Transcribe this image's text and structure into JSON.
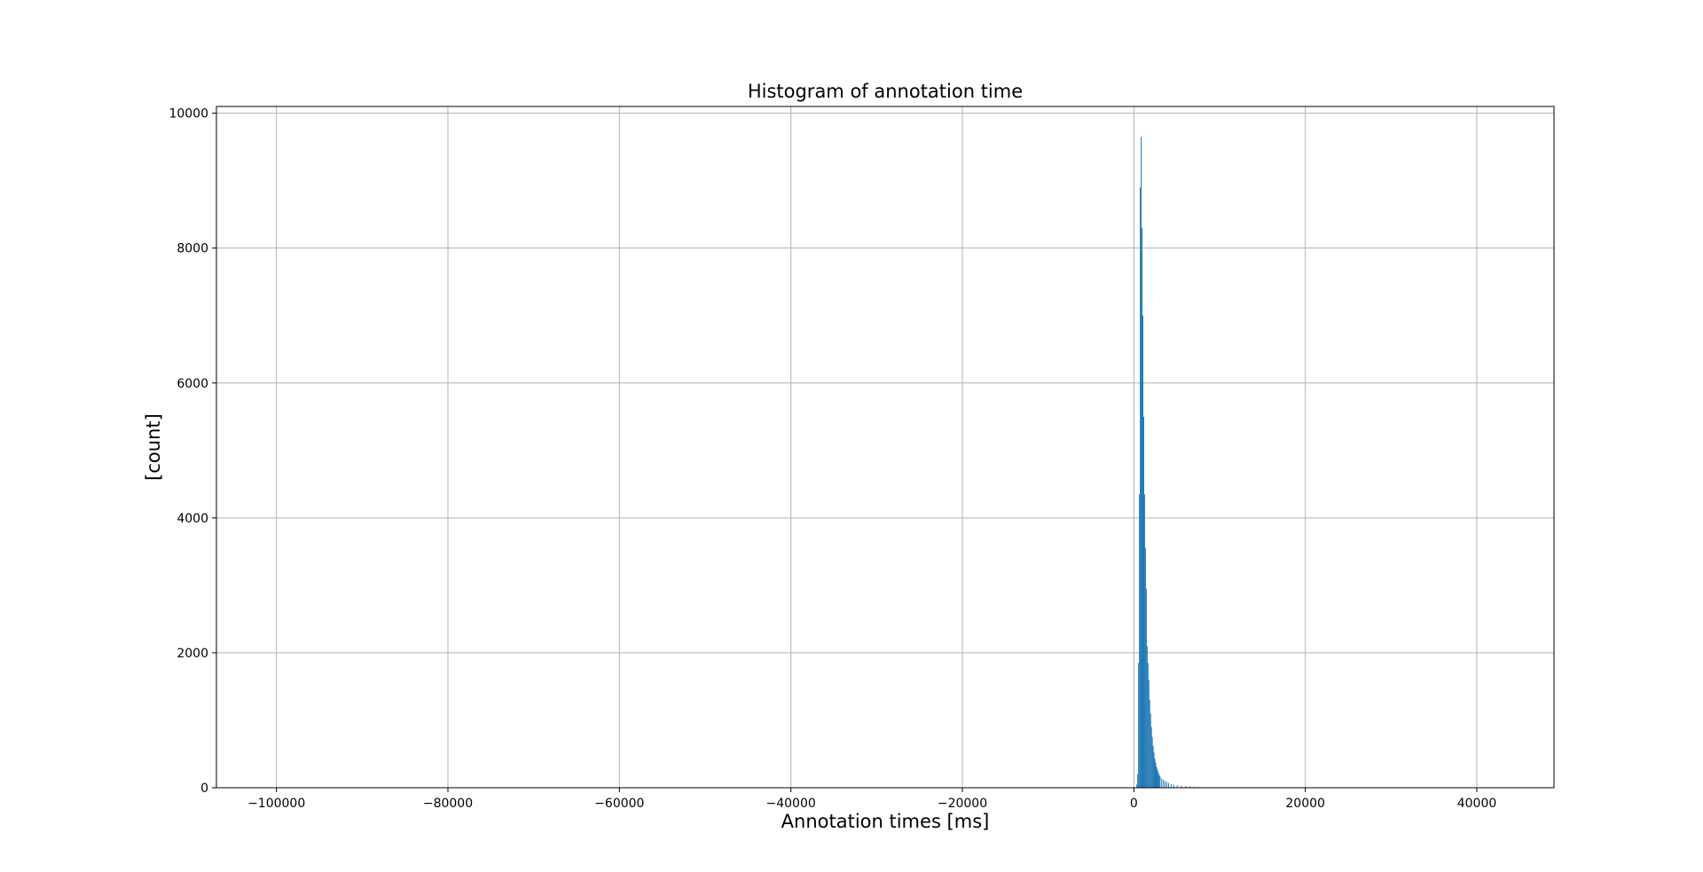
{
  "chart_data": {
    "type": "bar",
    "title": "Histogram of annotation time",
    "xlabel": "Annotation times [ms]",
    "ylabel": "[count]",
    "xlim": [
      -107000,
      49000
    ],
    "ylim": [
      0,
      10100
    ],
    "x_ticks": [
      {
        "value": -100000,
        "label": "−100000"
      },
      {
        "value": -80000,
        "label": "−80000"
      },
      {
        "value": -60000,
        "label": "−60000"
      },
      {
        "value": -40000,
        "label": "−40000"
      },
      {
        "value": -20000,
        "label": "−20000"
      },
      {
        "value": 0,
        "label": "0"
      },
      {
        "value": 20000,
        "label": "20000"
      },
      {
        "value": 40000,
        "label": "40000"
      }
    ],
    "y_ticks": [
      {
        "value": 0,
        "label": "0"
      },
      {
        "value": 2000,
        "label": "2000"
      },
      {
        "value": 4000,
        "label": "4000"
      },
      {
        "value": 6000,
        "label": "6000"
      },
      {
        "value": 8000,
        "label": "8000"
      },
      {
        "value": 10000,
        "label": "10000"
      }
    ],
    "grid": true,
    "bar_color": "#1f77b4",
    "bin_width": 100,
    "bins_x": [
      300,
      400,
      500,
      600,
      700,
      800,
      900,
      1000,
      1100,
      1200,
      1300,
      1400,
      1500,
      1600,
      1700,
      1800,
      1900,
      2000,
      2100,
      2200,
      2300,
      2400,
      2500,
      2600,
      2700,
      2800,
      2900,
      3000,
      3200,
      3400,
      3600,
      3800,
      4000,
      4300,
      4600,
      5000,
      5500,
      6000,
      6500,
      7000,
      7500,
      8000,
      8500,
      9000,
      9500,
      10000,
      10500
    ],
    "bins_count": [
      50,
      200,
      1850,
      4350,
      8900,
      9650,
      8300,
      7000,
      5500,
      4350,
      3550,
      2950,
      2100,
      1850,
      1600,
      1300,
      1100,
      900,
      750,
      620,
      520,
      430,
      370,
      310,
      270,
      230,
      200,
      170,
      140,
      120,
      100,
      85,
      70,
      55,
      45,
      38,
      30,
      25,
      20,
      16,
      13,
      10,
      8,
      6,
      5,
      4,
      3
    ]
  }
}
